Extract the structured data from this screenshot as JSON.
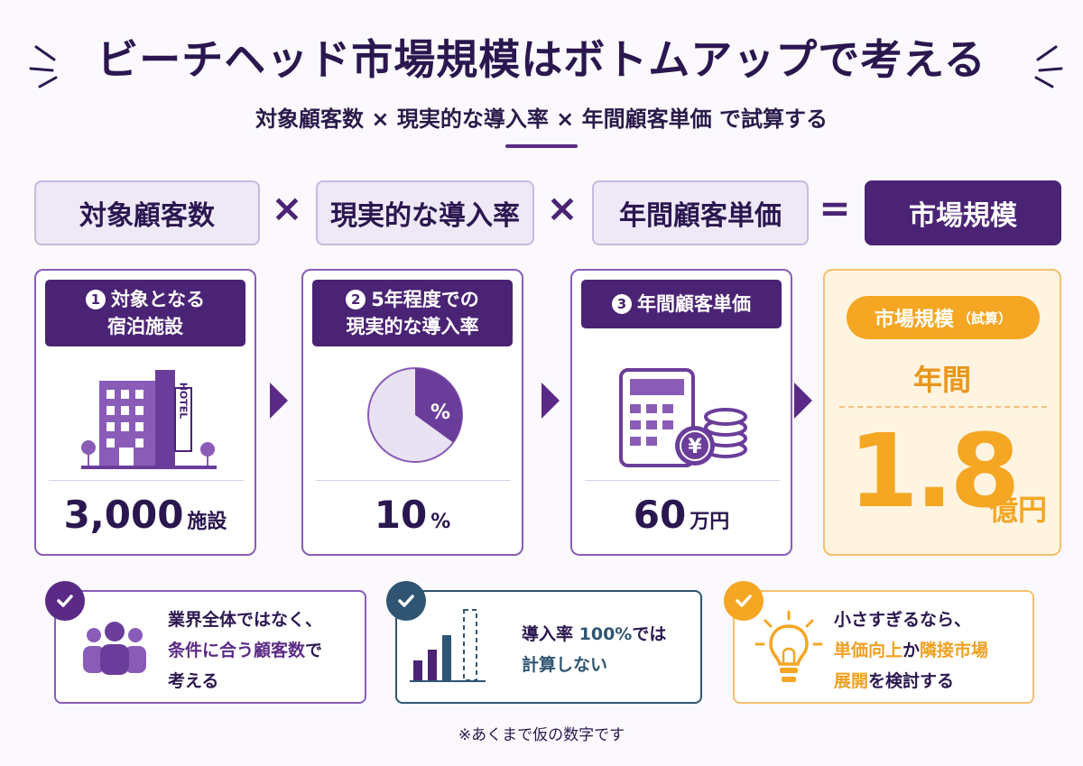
{
  "title": "ビーチヘッド市場規模はボトムアップで考える",
  "subtitle": "対象顧客数 × 現実的な導入率 × 年間顧客単価 で試算する",
  "formula": {
    "term1": "対象顧客数",
    "op1": "×",
    "term2": "現実的な導入率",
    "op2": "×",
    "term3": "年間顧客単価",
    "op3": "=",
    "result": "市場規模"
  },
  "cards": [
    {
      "badge": "1",
      "line1": "対象となる",
      "line2": "宿泊施設",
      "value": "3,000",
      "unit": "施設",
      "icon": "hotel-icon",
      "hotel_sign": "HOTEL"
    },
    {
      "badge": "2",
      "line1": "5年程度での",
      "line2": "現実的な導入率",
      "value": "10",
      "unit": "%",
      "icon": "pie-chart-icon",
      "pie_label": "%",
      "pie_fraction": 0.35
    },
    {
      "badge": "3",
      "line1": "年間顧客単価",
      "line2": "",
      "value": "60",
      "unit": "万円",
      "icon": "calculator-icon",
      "coin_label": "¥"
    }
  ],
  "result": {
    "pill": "市場規模",
    "pill_note": "（試算）",
    "period": "年間",
    "value": "1.8",
    "unit": "億円"
  },
  "notes": [
    {
      "line1": "業界全体ではなく、",
      "line2_hl": "条件に合う顧客数",
      "line2_rest": "で",
      "line3": "考える",
      "icon": "people-icon",
      "color": "#5b2a86"
    },
    {
      "line1_pre": "導入率 ",
      "line1_hl": "100%",
      "line1_post": "では",
      "line2": "計算しない",
      "icon": "bar-chart-icon",
      "color": "#2f5573"
    },
    {
      "line1": "小さすぎるなら、",
      "line2_hl1": "単価向上",
      "line2_mid": "か",
      "line2_hl2": "隣接市場",
      "line3_hl": "展開",
      "line3_rest": "を検討する",
      "icon": "lightbulb-icon",
      "color": "#f5a623"
    }
  ],
  "footnote": "※あくまで仮の数字です",
  "colors": {
    "primary": "#4b2375",
    "accent": "#f5a623",
    "blue": "#2f5573"
  }
}
